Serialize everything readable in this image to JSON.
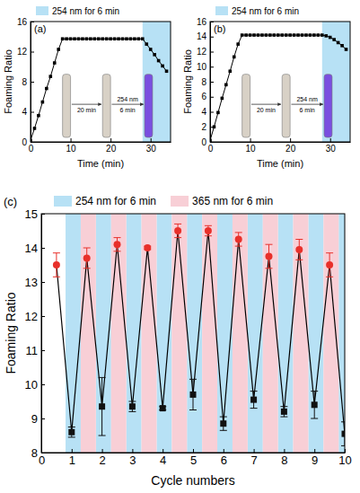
{
  "chart_data": [
    {
      "type": "line",
      "panel": "(a)",
      "x_label": "Time (min)",
      "y_label": "Foaming Ratio",
      "xlim": [
        0,
        35
      ],
      "xticks": [
        0,
        10,
        20,
        30
      ],
      "ylim": [
        0,
        16
      ],
      "yticks": [
        0,
        4,
        8,
        12,
        16
      ],
      "bands": [
        {
          "label": "254 nm for 6 min",
          "color": "#b7e1f5",
          "ranges": [
            [
              28,
              35
            ]
          ]
        }
      ],
      "legend": "top",
      "annotations": [
        "20 min",
        "254 nm",
        "6 min"
      ],
      "series": [
        {
          "color": "#000000",
          "marker": "square",
          "line_style": "solid",
          "x": [
            0,
            1,
            2,
            3,
            4,
            5,
            6,
            7,
            8,
            9,
            10,
            11,
            12,
            13,
            14,
            15,
            16,
            17,
            18,
            19,
            20,
            21,
            22,
            23,
            24,
            25,
            26,
            27,
            28,
            29,
            30,
            31,
            32,
            33,
            34
          ],
          "values": [
            0.2,
            1.8,
            3.5,
            5.3,
            7.1,
            8.7,
            10.5,
            12.3,
            13.7,
            13.7,
            13.7,
            13.7,
            13.7,
            13.7,
            13.7,
            13.7,
            13.7,
            13.7,
            13.7,
            13.7,
            13.7,
            13.7,
            13.7,
            13.7,
            13.7,
            13.7,
            13.7,
            13.7,
            13.7,
            13.0,
            12.3,
            11.6,
            10.8,
            10.1,
            9.4
          ]
        }
      ]
    },
    {
      "type": "line",
      "panel": "(b)",
      "x_label": "Time (min)",
      "y_label": "Foaming Ratio",
      "xlim": [
        0,
        35
      ],
      "xticks": [
        0,
        10,
        20,
        30
      ],
      "ylim": [
        0,
        16
      ],
      "yticks": [
        0,
        2,
        4,
        6,
        8,
        10,
        12,
        14,
        16
      ],
      "bands": [
        {
          "label": "254 nm for 6 min",
          "color": "#b7e1f5",
          "ranges": [
            [
              28,
              35
            ]
          ]
        }
      ],
      "legend": "top",
      "annotations": [
        "20 min",
        "254 nm",
        "6 min"
      ],
      "series": [
        {
          "color": "#000000",
          "marker": "square",
          "line_style": "solid",
          "x": [
            0,
            1,
            2,
            3,
            4,
            5,
            6,
            7,
            8,
            9,
            10,
            11,
            12,
            13,
            14,
            15,
            16,
            17,
            18,
            19,
            20,
            21,
            22,
            23,
            24,
            25,
            26,
            27,
            28,
            29,
            30,
            31,
            32,
            33,
            34
          ],
          "values": [
            0.2,
            2.0,
            3.9,
            5.8,
            7.6,
            9.4,
            11.3,
            13.0,
            14.2,
            14.2,
            14.2,
            14.2,
            14.2,
            14.2,
            14.2,
            14.2,
            14.2,
            14.2,
            14.2,
            14.2,
            14.2,
            14.2,
            14.2,
            14.2,
            14.2,
            14.2,
            14.2,
            14.2,
            14.2,
            14.1,
            13.9,
            13.6,
            13.2,
            12.8,
            12.3
          ]
        }
      ]
    },
    {
      "type": "line",
      "panel": "(c)",
      "x_label": "Cycle numbers",
      "y_label": "Foaming Ratio",
      "xlim": [
        0,
        10
      ],
      "xticks": [
        0,
        1,
        2,
        3,
        4,
        5,
        6,
        7,
        8,
        9,
        10
      ],
      "ylim": [
        8,
        15
      ],
      "yticks": [
        8,
        9,
        10,
        11,
        12,
        13,
        14,
        15
      ],
      "line_style": "solid",
      "legend": "top",
      "bands": [
        {
          "label": "254 nm for 6 min",
          "color": "#b7e1f5",
          "ranges": [
            [
              0.8,
              1.3
            ],
            [
              1.8,
              2.3
            ],
            [
              2.8,
              3.3
            ],
            [
              3.8,
              4.3
            ],
            [
              4.8,
              5.3
            ],
            [
              5.8,
              6.3
            ],
            [
              6.8,
              7.3
            ],
            [
              7.8,
              8.3
            ],
            [
              8.8,
              9.3
            ],
            [
              9.8,
              10
            ]
          ]
        },
        {
          "label": "365 nm for 6 min",
          "color": "#f8cfd6",
          "ranges": [
            [
              1.3,
              1.8
            ],
            [
              2.3,
              2.8
            ],
            [
              3.3,
              3.8
            ],
            [
              4.3,
              4.8
            ],
            [
              5.3,
              5.8
            ],
            [
              6.3,
              6.8
            ],
            [
              7.3,
              7.8
            ],
            [
              8.3,
              8.8
            ],
            [
              9.3,
              9.8
            ]
          ]
        }
      ],
      "series": [
        {
          "type": "scatter",
          "color": "#e8302a",
          "marker": "circle",
          "x": [
            0.5,
            1.5,
            2.5,
            3.5,
            4.5,
            5.5,
            6.5,
            7.5,
            8.5,
            9.5
          ],
          "values": [
            13.5,
            13.7,
            14.1,
            14.0,
            14.5,
            14.5,
            14.25,
            13.75,
            13.95,
            13.5
          ],
          "errors": [
            0.35,
            0.3,
            0.2,
            0.05,
            0.2,
            0.15,
            0.2,
            0.35,
            0.3,
            0.35
          ]
        },
        {
          "type": "scatter",
          "color": "#111111",
          "marker": "square",
          "x": [
            1,
            2,
            3,
            4,
            5,
            6,
            7,
            8,
            9,
            10
          ],
          "values": [
            8.6,
            9.35,
            9.35,
            9.3,
            9.7,
            8.85,
            9.55,
            9.2,
            9.4,
            8.55
          ],
          "errors": [
            0.15,
            0.85,
            0.15,
            0.05,
            0.45,
            0.2,
            0.25,
            0.15,
            0.4,
            0.35
          ]
        }
      ]
    }
  ]
}
